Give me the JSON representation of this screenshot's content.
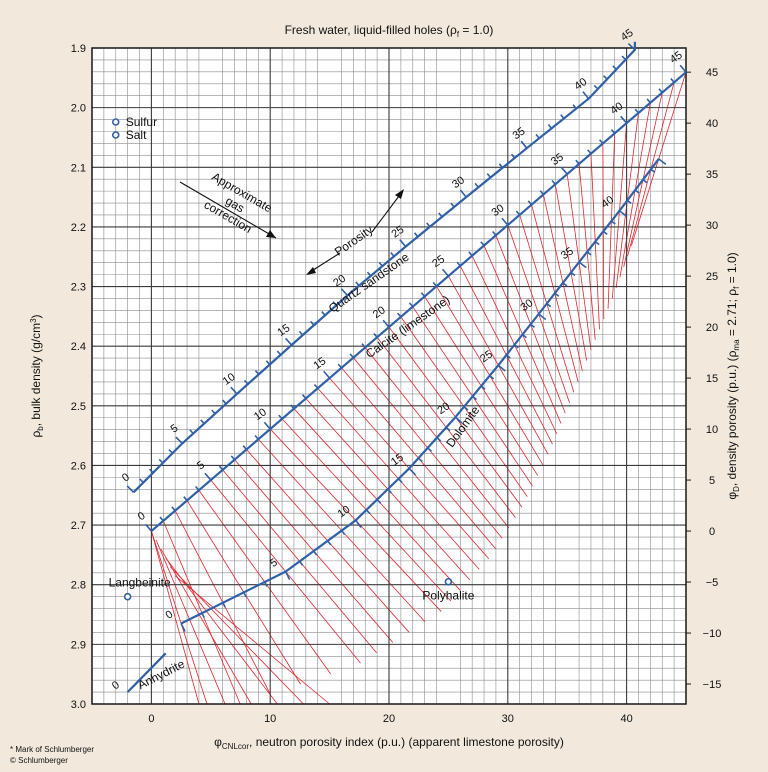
{
  "chart_data": {
    "type": "line",
    "title": "Fresh water, liquid-filled holes (ρf = 1.0)",
    "title_main": "Fresh water, liquid-filled holes (ρ",
    "title_sub": "f",
    "title_tail": " = 1.0)",
    "xlabel": "φCNLcor, neutron porosity index (p.u.) (apparent limestone porosity)",
    "xlabel_sym": "φ",
    "xlabel_sub": "CNLcor",
    "xlabel_rest": ", neutron porosity index (p.u.) (apparent limestone porosity)",
    "ylabel": "ρb, bulk density (g/cm3)",
    "ylabel_sym": "ρ",
    "ylabel_sub": "b",
    "ylabel_rest": ", bulk density (g/cm",
    "ylabel_sup": "3",
    "ylabel_end": ")",
    "y2label": "φD, density porosity (p.u.) (ρma = 2.71; ρf = 1.0)",
    "y2label_sym": "φ",
    "y2label_sub": "D",
    "y2label_mid": ", density porosity (p.u.) (ρ",
    "y2label_sub2": "ma",
    "y2label_mid2": " = 2.71; ρ",
    "y2label_sub3": "f",
    "y2label_end": " = 1.0)",
    "xlim": [
      -5,
      45
    ],
    "ylim": [
      1.9,
      3.0
    ],
    "y_inverted": true,
    "x_ticks": [
      "0",
      "10",
      "20",
      "30",
      "40"
    ],
    "y_ticks": [
      "1.9",
      "2.0",
      "2.1",
      "2.2",
      "2.3",
      "2.4",
      "2.5",
      "2.6",
      "2.7",
      "2.8",
      "2.9",
      "3.0"
    ],
    "y2_ticks": [
      "45",
      "40",
      "35",
      "30",
      "25",
      "20",
      "15",
      "10",
      "5",
      "0",
      "−5",
      "−10",
      "−15"
    ],
    "grid": true,
    "series": [
      {
        "name": "Quartz sandstone",
        "porosity": [
          0,
          5,
          10,
          15,
          20,
          25,
          30,
          35,
          40,
          45
        ],
        "x": [
          -1.5,
          2.6,
          7.2,
          11.8,
          16.5,
          21.4,
          26.5,
          31.6,
          36.8,
          40.7
        ],
        "y": [
          2.645,
          2.563,
          2.48,
          2.398,
          2.315,
          2.233,
          2.15,
          2.068,
          1.985,
          1.903
        ]
      },
      {
        "name": "Calcite (limestone)",
        "porosity": [
          0,
          5,
          10,
          15,
          20,
          25,
          30,
          35,
          40,
          45
        ],
        "x": [
          0,
          5,
          10,
          15,
          20,
          25,
          30,
          35,
          40,
          45
        ],
        "y": [
          2.71,
          2.6245,
          2.539,
          2.4535,
          2.368,
          2.2825,
          2.197,
          2.1115,
          2.026,
          1.9405
        ]
      },
      {
        "name": "Dolomite",
        "porosity": [
          0,
          5,
          10,
          15,
          20,
          25,
          30,
          35,
          40,
          45
        ],
        "x": [
          2.5,
          11.3,
          17.2,
          21.7,
          25.6,
          29.2,
          32.6,
          36.0,
          39.4,
          42.7
        ],
        "y": [
          2.865,
          2.778,
          2.692,
          2.605,
          2.519,
          2.432,
          2.346,
          2.259,
          2.173,
          2.086
        ]
      },
      {
        "name": "Anhydrite",
        "x": [
          -2.0,
          1.2
        ],
        "y": [
          2.98,
          2.915
        ]
      }
    ],
    "point_labels": [
      {
        "series": "Quartz sandstone",
        "labels": [
          "0",
          "5",
          "10",
          "15",
          "20",
          "25",
          "30",
          "35",
          "40",
          "45"
        ]
      },
      {
        "series": "Calcite (limestone)",
        "labels": [
          "0",
          "5",
          "10",
          "15",
          "20",
          "25",
          "30",
          "35",
          "40",
          "45"
        ]
      },
      {
        "series": "Dolomite",
        "labels": [
          "0",
          "5",
          "10",
          "15",
          "20",
          "25",
          "30",
          "35",
          "40"
        ]
      },
      {
        "series": "Anhydrite",
        "labels": [
          "0"
        ]
      }
    ],
    "minerals": [
      {
        "name": "Sulfur",
        "x": -3.0,
        "y": 2.026
      },
      {
        "name": "Salt",
        "x": -3.0,
        "y": 2.045
      },
      {
        "name": "Langbeinite",
        "x": -2.0,
        "y": 2.82
      },
      {
        "name": "Polyhalite",
        "x": 25.0,
        "y": 2.795
      }
    ],
    "annotations": [
      "Approximate",
      "gas",
      "correction",
      "Porosity"
    ]
  },
  "footer": {
    "line1": "* Mark of Schlumberger",
    "line2": "© Schlumberger"
  }
}
